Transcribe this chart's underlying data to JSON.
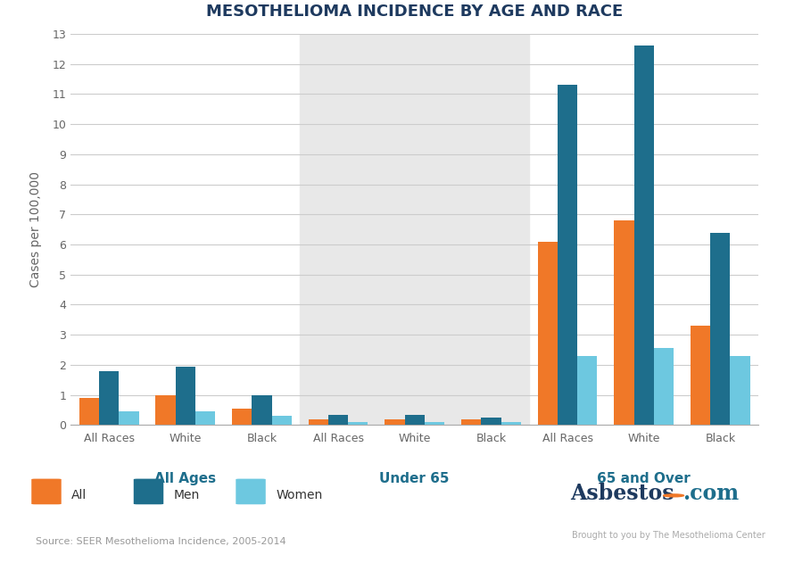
{
  "title": "MESOTHELIOMA INCIDENCE BY AGE AND RACE",
  "ylabel": "Cases per 100,000",
  "ylim": [
    0,
    13
  ],
  "yticks": [
    0,
    1,
    2,
    3,
    4,
    5,
    6,
    7,
    8,
    9,
    10,
    11,
    12,
    13
  ],
  "age_groups": [
    "All Ages",
    "Under 65",
    "65 and Over"
  ],
  "race_labels": [
    "All Races",
    "White",
    "Black"
  ],
  "group_labels_x": [
    "All Races",
    "White",
    "Black",
    "All Races",
    "White",
    "Black",
    "All Races",
    "White",
    "Black"
  ],
  "data": {
    "All": [
      0.9,
      1.0,
      0.55,
      0.2,
      0.2,
      0.2,
      6.1,
      6.8,
      3.3
    ],
    "Men": [
      1.8,
      1.95,
      1.0,
      0.35,
      0.35,
      0.25,
      11.3,
      12.6,
      6.4
    ],
    "Women": [
      0.45,
      0.45,
      0.3,
      0.1,
      0.1,
      0.1,
      2.3,
      2.55,
      2.3
    ]
  },
  "colors": {
    "All": "#f07828",
    "Men": "#1e6e8c",
    "Women": "#6dc8e0"
  },
  "legend_labels": [
    "All",
    "Men",
    "Women"
  ],
  "shade_color": "#e8e8e8",
  "background_color": "#ffffff",
  "footer_bg": "#e8e8e8",
  "source_text": "Source: SEER Mesothelioma Incidence, 2005-2014",
  "age_group_label_color": "#1e6e8c"
}
